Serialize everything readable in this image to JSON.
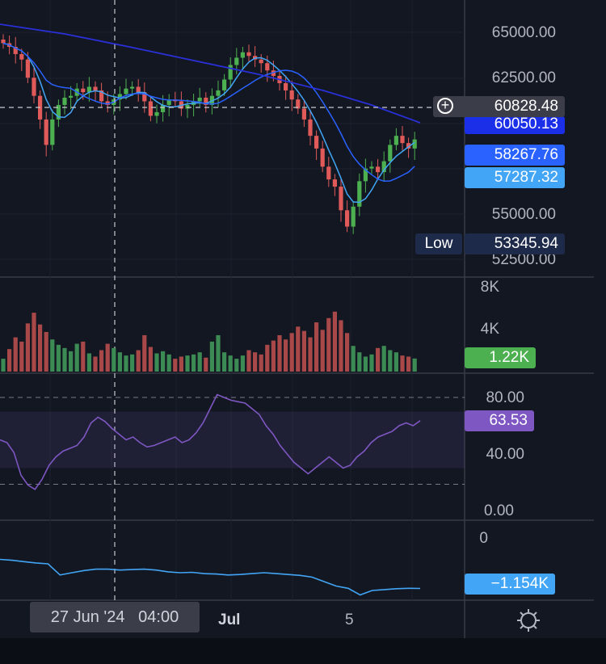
{
  "chart_data": [
    {
      "type": "candlestick",
      "panel": "price",
      "y_ticks": [
        "65000.00",
        "62500.00",
        "55000.00",
        "52500.00"
      ],
      "ylim": [
        52000,
        66000
      ],
      "crosshair_price": "60828.48",
      "tags": {
        "ma_long": "60050.13",
        "ma_mid": "58267.76",
        "ma_short": "57287.32",
        "low_label": "Low",
        "low_value": "53345.94"
      },
      "candles_close": [
        64400,
        64200,
        63800,
        63500,
        62500,
        61500,
        60200,
        58800,
        60200,
        61000,
        61400,
        61500,
        61900,
        61700,
        62000,
        61800,
        61200,
        61000,
        61300,
        61600,
        61900,
        62000,
        61700,
        61200,
        60400,
        60600,
        61000,
        61300,
        61200,
        60800,
        61000,
        61200,
        61400,
        61000,
        61500,
        61800,
        62400,
        63200,
        63600,
        63900,
        63700,
        63500,
        63300,
        62900,
        62600,
        62200,
        61800,
        61300,
        60800,
        60200,
        59300,
        58600,
        57600,
        56900,
        56500,
        55200,
        54300,
        55400,
        56800,
        57500,
        57600,
        57300,
        57900,
        58800,
        59300,
        58900,
        58600,
        59100
      ]
    },
    {
      "type": "bar",
      "panel": "volume",
      "y_ticks": [
        "8K",
        "4K"
      ],
      "current": "1.22K",
      "values": [
        1.2,
        2.1,
        3.2,
        2.8,
        4.5,
        5.5,
        4.4,
        3.7,
        3.0,
        2.5,
        2.2,
        1.9,
        2.6,
        2.8,
        1.7,
        1.4,
        2.0,
        2.6,
        2.2,
        1.8,
        1.5,
        1.6,
        2.0,
        3.4,
        2.3,
        1.7,
        1.9,
        1.6,
        1.2,
        1.4,
        1.5,
        1.6,
        1.8,
        1.3,
        2.8,
        3.4,
        1.8,
        1.5,
        1.2,
        1.5,
        2.0,
        1.8,
        1.6,
        2.5,
        2.9,
        3.4,
        3.0,
        3.6,
        4.2,
        3.8,
        3.2,
        4.6,
        3.9,
        5.0,
        5.6,
        4.8,
        3.6,
        2.4,
        1.8,
        1.4,
        1.6,
        2.2,
        2.4,
        2.0,
        1.8,
        1.5,
        1.4,
        1.22
      ]
    },
    {
      "type": "line",
      "panel": "rsi",
      "y_ticks": [
        "80.00",
        "40.00",
        "0.00"
      ],
      "bands": [
        30,
        70
      ],
      "current": "63.53",
      "values": [
        50,
        48,
        41,
        25,
        18,
        15,
        22,
        32,
        38,
        42,
        44,
        46,
        52,
        62,
        66,
        63,
        58,
        54,
        50,
        52,
        48,
        45,
        46,
        48,
        50,
        52,
        48,
        50,
        55,
        62,
        72,
        82,
        80,
        78,
        77,
        76,
        72,
        68,
        60,
        54,
        46,
        40,
        34,
        30,
        26,
        30,
        34,
        38,
        34,
        30,
        32,
        38,
        42,
        48,
        52,
        54,
        56,
        60,
        62,
        60,
        63.53
      ]
    },
    {
      "type": "line",
      "panel": "indicator",
      "y_ticks": [
        "0"
      ],
      "current": "−1.154K",
      "values": [
        -0.5,
        -0.52,
        -0.55,
        -0.58,
        -0.6,
        -0.85,
        -0.8,
        -0.75,
        -0.72,
        -0.72,
        -0.74,
        -0.73,
        -0.72,
        -0.74,
        -0.78,
        -0.8,
        -0.79,
        -0.82,
        -0.83,
        -0.85,
        -0.84,
        -0.82,
        -0.8,
        -0.82,
        -0.84,
        -0.86,
        -0.9,
        -1.0,
        -1.1,
        -1.15,
        -1.3,
        -1.2,
        -1.18,
        -1.16,
        -1.15,
        -1.154
      ]
    }
  ],
  "x_axis": {
    "crosshair_label": "27 Jun '24   04:00",
    "jul_label": "Jul",
    "day_label": "5"
  }
}
